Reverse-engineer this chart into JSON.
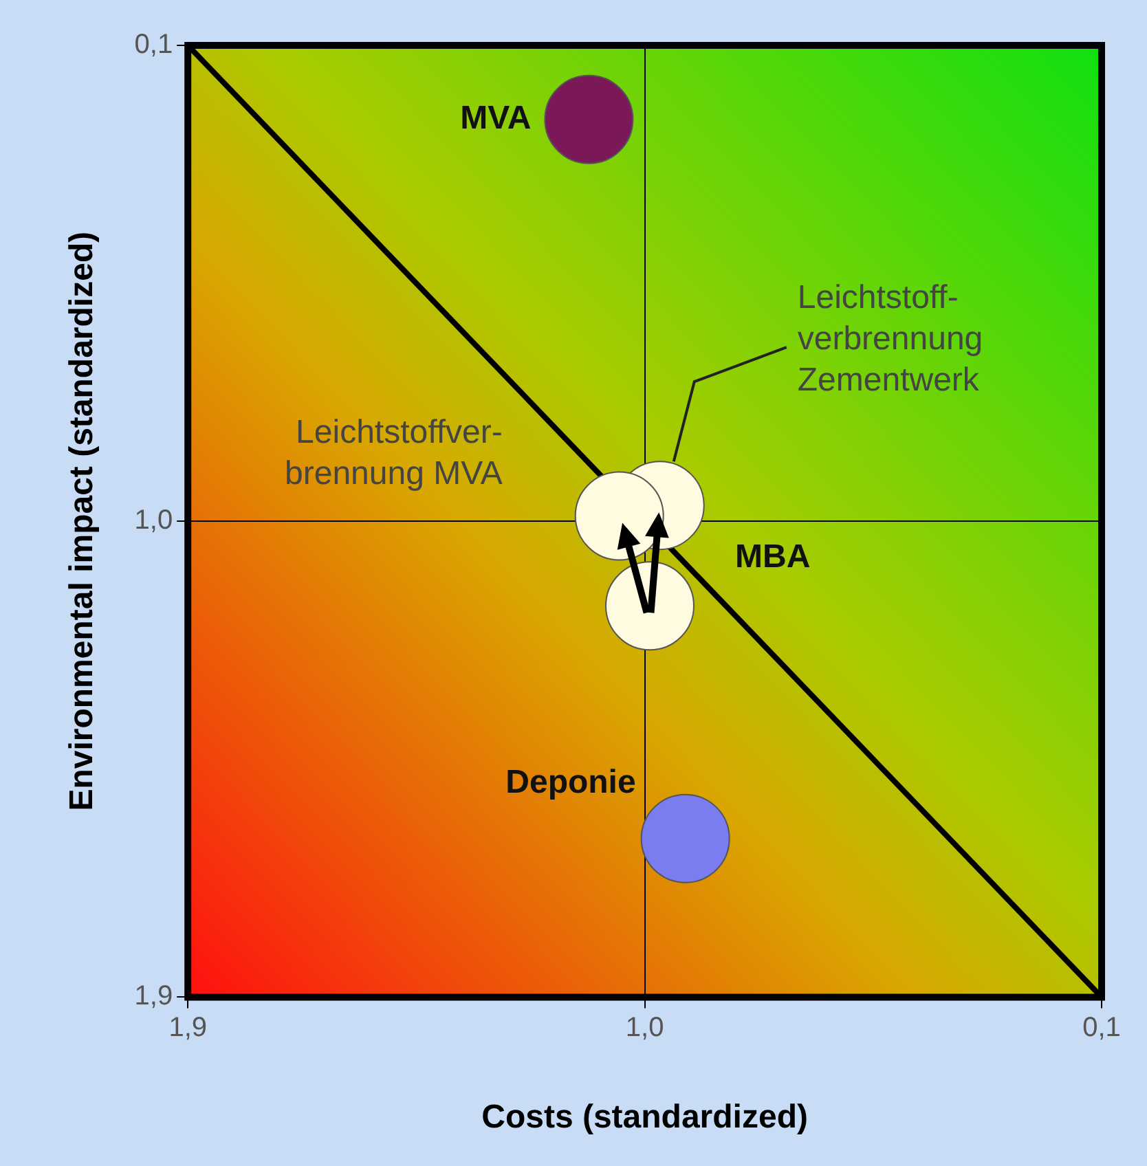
{
  "chart_data": {
    "type": "bubble",
    "xlabel": "Costs (standardized)",
    "ylabel": "Environmental impact (standardized)",
    "xlim": [
      1.9,
      0.1
    ],
    "ylim": [
      1.9,
      0.1
    ],
    "xticks": [
      {
        "value": 1.9,
        "label": "1,9"
      },
      {
        "value": 1.0,
        "label": "1,0"
      },
      {
        "value": 0.1,
        "label": "0,1"
      }
    ],
    "yticks": [
      {
        "value": 1.9,
        "label": "1,9"
      },
      {
        "value": 1.0,
        "label": "1,0"
      },
      {
        "value": 0.1,
        "label": "0,1"
      }
    ],
    "grid": true,
    "legend": false,
    "series": [
      {
        "name": "MVA",
        "color": "#7a1858",
        "x": [
          1.11
        ],
        "values": [
          0.24
        ],
        "sizes": [
          1
        ]
      },
      {
        "name": "Deponie",
        "color": "#7a7cf0",
        "x": [
          0.92
        ],
        "values": [
          1.6
        ],
        "sizes": [
          1
        ]
      },
      {
        "name": "MBA",
        "color": "#fffbe0",
        "x": [
          0.99
        ],
        "values": [
          1.16
        ],
        "sizes": [
          1
        ]
      },
      {
        "name": "Leichtstoffver-\nbrennung MVA",
        "color": "#fffbe0",
        "x": [
          1.05
        ],
        "values": [
          0.99
        ],
        "sizes": [
          1
        ]
      },
      {
        "name": "Leichtstoff-\nverbrennung\nZementwerk",
        "color": "#fffbe0",
        "x": [
          0.97
        ],
        "values": [
          0.97
        ],
        "sizes": [
          1
        ]
      },
      {
        "type": "line",
        "color": "#000000",
        "x": [
          1.9,
          0.1
        ],
        "values": [
          0.1,
          1.9
        ],
        "marker": "none"
      }
    ]
  }
}
